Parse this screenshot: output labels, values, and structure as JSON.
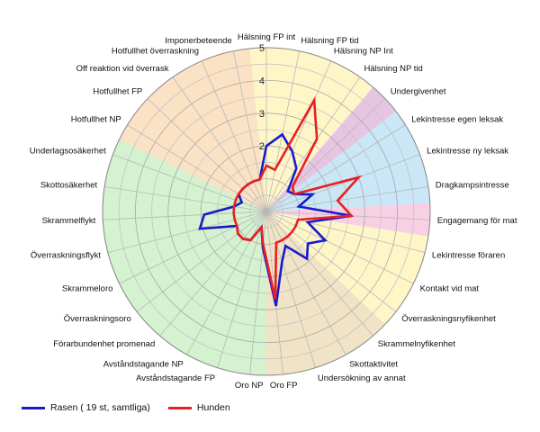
{
  "chart_data": {
    "type": "radar",
    "title": "",
    "categories": [
      "Hälsning FP int",
      "Hälsning FP tid",
      "Hälsning NP Int",
      "Hälsning NP tid",
      "Undergivenhet",
      "Lekintresse egen leksak",
      "Lekintresse ny leksak",
      "Dragkampsintresse",
      "Engagemang för mat",
      "Lekintresse föraren",
      "Kontakt vid mat",
      "Överraskningsnyfikenhet",
      "Skrammelnyfikenhet",
      "Skottaktivitet",
      "Undersökning av annat",
      "Oro FP",
      "Oro NP",
      "Avståndstagande FP",
      "Avståndstagande NP",
      "Förarbundenhet promenad",
      "Överraskningsoro",
      "Skrammeloro",
      "Överraskningsflykt",
      "Skrammelflykt",
      "Skottosäkerhet",
      "Underlagsosäkerhet",
      "Hotfullhet NP",
      "Hotfullhet FP",
      "Off reaktion vid överrask",
      "Hotfullhet överraskning",
      "Imponerbeteende"
    ],
    "rlim": [
      0,
      5
    ],
    "r_ticks": [
      1,
      2,
      3,
      4,
      5
    ],
    "r_tick_labels": [
      "",
      "2",
      "3",
      "4",
      "5"
    ],
    "grid": true,
    "legend_position": "bottom-left",
    "series": [
      {
        "name": "Rasen ( 19 st, samtliga)",
        "color": "#1a1acc",
        "values": [
          2.0,
          2.4,
          2.0,
          1.6,
          0.9,
          1.0,
          1.5,
          1.0,
          2.6,
          1.3,
          2.0,
          1.6,
          1.9,
          1.2,
          1.6,
          2.9,
          1.1,
          0.5,
          1.0,
          1.1,
          1.1,
          1.0,
          2.1,
          1.9,
          1.0,
          0.8,
          1.0,
          1.0,
          1.0,
          1.0,
          1.0
        ]
      },
      {
        "name": "Hunden",
        "color": "#e82020",
        "values": [
          1.4,
          1.3,
          3.7,
          2.7,
          1.1,
          1.0,
          3.0,
          2.2,
          2.6,
          1.0,
          1.0,
          1.0,
          1.0,
          1.0,
          1.0,
          2.7,
          1.0,
          0.5,
          1.0,
          1.1,
          1.1,
          1.0,
          1.0,
          1.0,
          1.0,
          1.0,
          1.0,
          1.0,
          1.0,
          1.0,
          1.0
        ]
      }
    ],
    "category_groups": [
      {
        "color": "#fff6c8",
        "from": 0,
        "to": 3
      },
      {
        "color": "#e6c5e3",
        "from": 4,
        "to": 4
      },
      {
        "color": "#c9e7f6",
        "from": 5,
        "to": 7
      },
      {
        "color": "#f8d0e3",
        "from": 8,
        "to": 8
      },
      {
        "color": "#fff6c8",
        "from": 9,
        "to": 11
      },
      {
        "color": "#f1e4c6",
        "from": 12,
        "to": 15
      },
      {
        "color": "#d4f1d0",
        "from": 16,
        "to": 25
      },
      {
        "color": "#fbe2c5",
        "from": 26,
        "to": 30
      }
    ],
    "background_color": "#eeeeee"
  }
}
